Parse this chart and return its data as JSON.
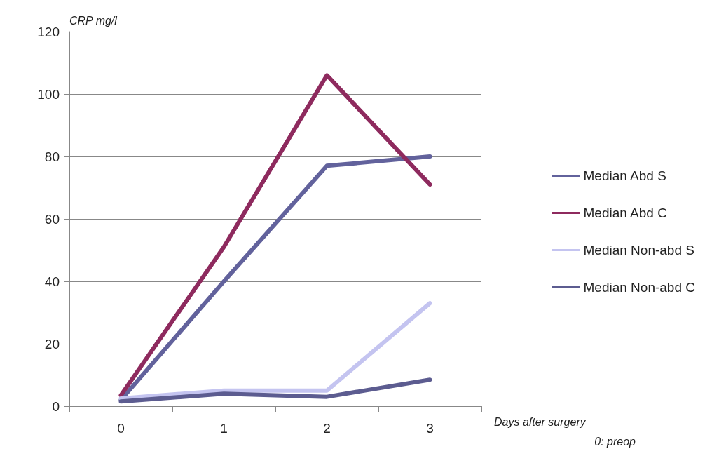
{
  "chart_data": {
    "type": "line",
    "ylabel": "CRP mg/l",
    "xlabel": "Days after surgery",
    "annotations": [
      "0: preop"
    ],
    "categories": [
      "0",
      "1",
      "2",
      "3"
    ],
    "series": [
      {
        "name": "Median Abd S",
        "color": "#62629c",
        "values": [
          2,
          40,
          77,
          80
        ]
      },
      {
        "name": "Median Abd C",
        "color": "#8e2a5e",
        "values": [
          3.5,
          51,
          106,
          71
        ]
      },
      {
        "name": "Median Non-abd S",
        "color": "#c4c4f0",
        "values": [
          2.5,
          5,
          5,
          33
        ]
      },
      {
        "name": "Median Non-abd C",
        "color": "#5c5c90",
        "values": [
          1.5,
          4,
          3,
          8.5
        ]
      }
    ],
    "ylim": [
      0,
      120
    ],
    "yticks": [
      0,
      20,
      40,
      60,
      80,
      100,
      120
    ],
    "grid": "y",
    "legend": "right",
    "marker": "none",
    "line_style": "solid"
  }
}
